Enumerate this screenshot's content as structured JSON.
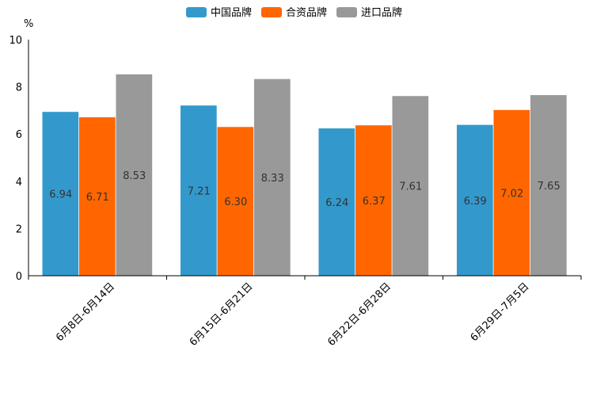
{
  "chart_data": {
    "type": "bar",
    "title": "",
    "xlabel": "",
    "ylabel": "%",
    "ylim": [
      0,
      10
    ],
    "yticks": [
      "0",
      "2",
      "4",
      "6",
      "8",
      "10"
    ],
    "categories": [
      "6月8日-6月14日",
      "6月15日-6月21日",
      "6月22日-6月28日",
      "6月29日-7月5日"
    ],
    "series": [
      {
        "name": "中国品牌",
        "color": "#3399cc",
        "values": [
          6.94,
          7.21,
          6.24,
          6.39
        ],
        "labels": [
          "6.94",
          "7.21",
          "6.24",
          "6.39"
        ]
      },
      {
        "name": "合资品牌",
        "color": "#ff6600",
        "values": [
          6.71,
          6.3,
          6.37,
          7.02
        ],
        "labels": [
          "6.71",
          "6.30",
          "6.37",
          "7.02"
        ]
      },
      {
        "name": "进口品牌",
        "color": "#999999",
        "values": [
          8.53,
          8.33,
          7.61,
          7.65
        ],
        "labels": [
          "8.53",
          "8.33",
          "7.61",
          "7.65"
        ]
      }
    ],
    "legend_position": "top-center",
    "grid": false
  }
}
